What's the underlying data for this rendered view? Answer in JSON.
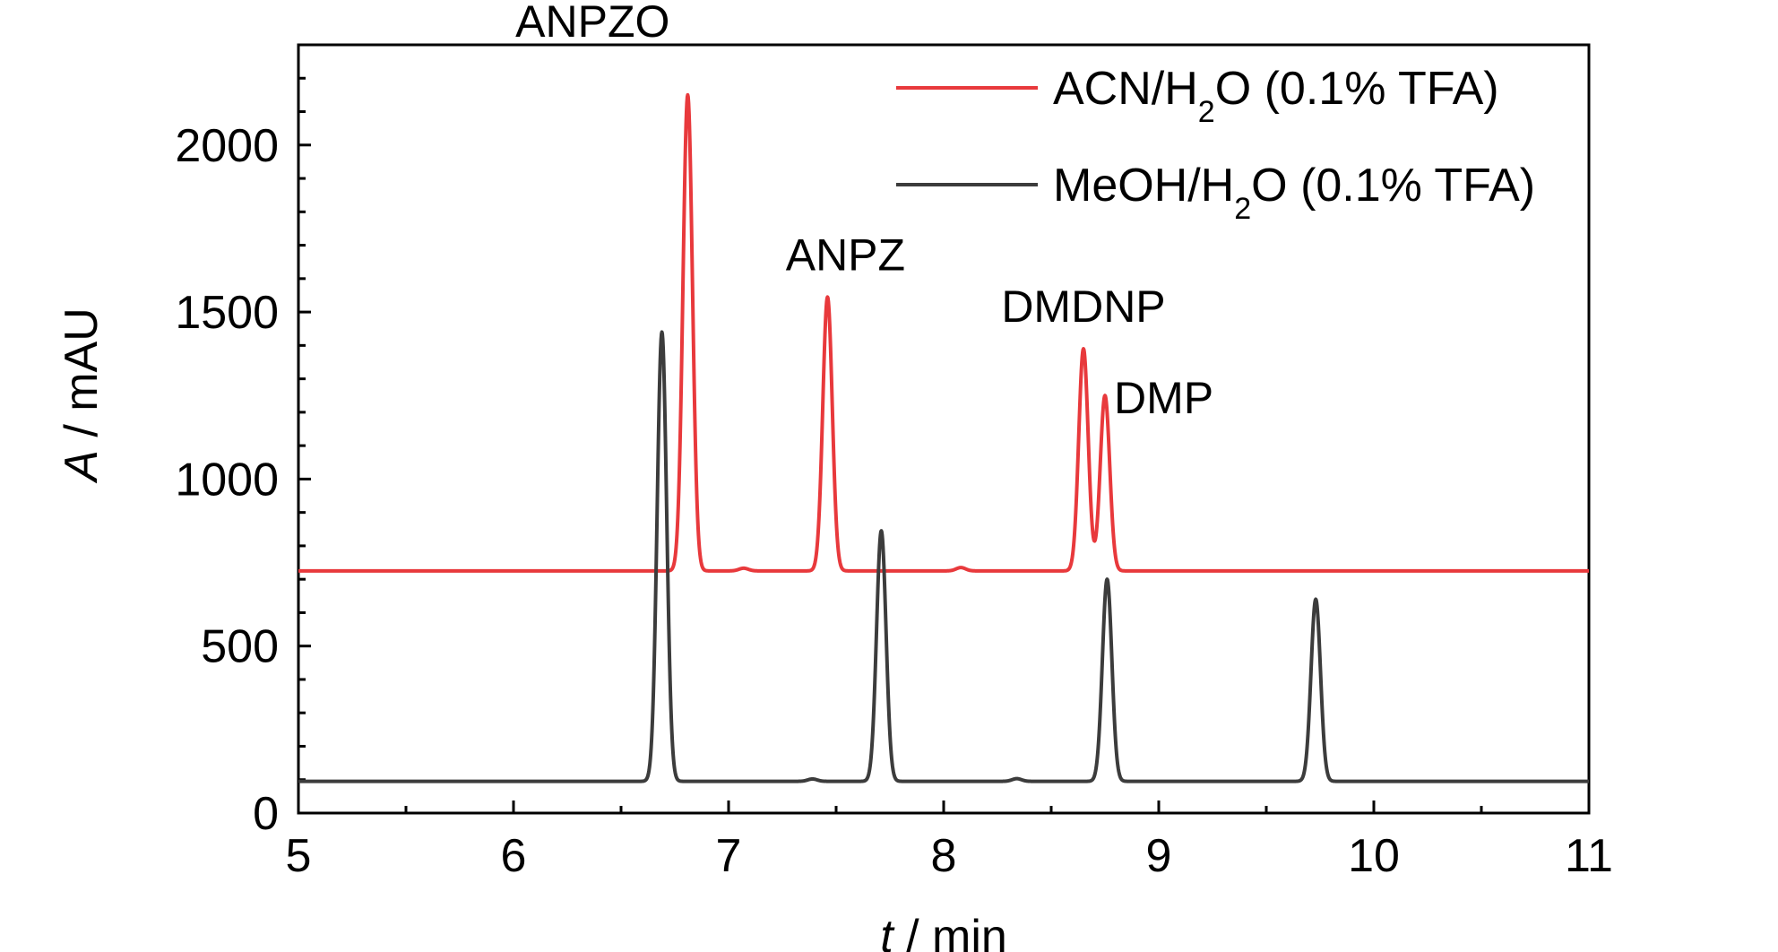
{
  "chart_data": {
    "type": "line",
    "xlabel_italic": "t",
    "xlabel_rest": " / min",
    "ylabel_italic": "A",
    "ylabel_rest": " / mAU",
    "xlim": [
      5,
      11
    ],
    "ylim": [
      0,
      2300
    ],
    "xticks": [
      "5",
      "6",
      "7",
      "8",
      "9",
      "10",
      "11"
    ],
    "yticks": [
      "0",
      "500",
      "1000",
      "1500",
      "2000"
    ],
    "legend_position": "top-right",
    "grid": false,
    "legend": [
      {
        "pre": "ACN/H",
        "sub": "2",
        "post": "O (0.1% TFA)",
        "color": "#e8393c"
      },
      {
        "pre": "MeOH/H",
        "sub": "2",
        "post": "O (0.1% TFA)",
        "color": "#3c3c3c"
      }
    ],
    "annotations": [
      "ANPZO",
      "ANPZ",
      "DMDNP",
      "DMP"
    ],
    "series": [
      {
        "color": "#e8393c",
        "baseline": 725,
        "peaks": [
          {
            "x": 6.81,
            "y": 2150,
            "label": "ANPZO"
          },
          {
            "x": 7.07,
            "y": 733
          },
          {
            "x": 7.46,
            "y": 1545,
            "label": "ANPZ"
          },
          {
            "x": 8.08,
            "y": 735
          },
          {
            "x": 8.65,
            "y": 1390,
            "label": "DMDNP"
          },
          {
            "x": 8.75,
            "y": 1250,
            "label": "DMP"
          }
        ]
      },
      {
        "color": "#3c3c3c",
        "baseline": 95,
        "peaks": [
          {
            "x": 6.69,
            "y": 1440
          },
          {
            "x": 7.39,
            "y": 102
          },
          {
            "x": 7.71,
            "y": 845
          },
          {
            "x": 8.34,
            "y": 103
          },
          {
            "x": 8.76,
            "y": 700
          },
          {
            "x": 9.73,
            "y": 640
          }
        ]
      }
    ]
  }
}
